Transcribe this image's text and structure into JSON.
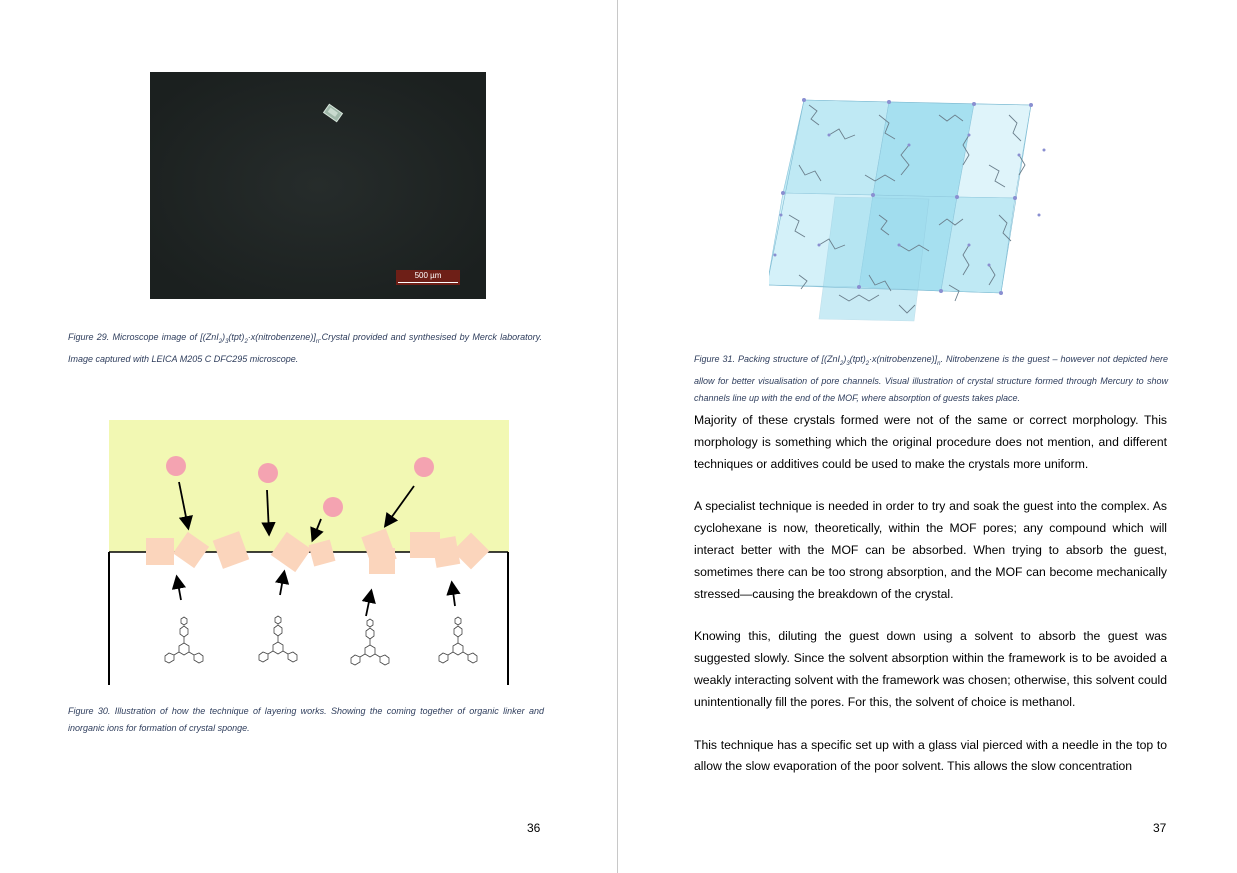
{
  "left_page": {
    "figure29": {
      "scale_label": "500 µm",
      "caption_parts": [
        "Figure 29. Microscope image of [(ZnI",
        "2",
        ")",
        "3",
        "(tpt)",
        "2",
        "·x(nitrobenzene)]",
        "n",
        ".Crystal provided and synthesised by Merck laboratory. Image captured with LEICA M205 C DFC295 microscope."
      ]
    },
    "figure30": {
      "caption": "Figure 30. Illustration of how the technique of layering works. Showing the coming together of organic linker and inorganic ions for formation of crystal sponge."
    },
    "page_number": "36"
  },
  "right_page": {
    "figure31": {
      "caption_parts": [
        "Figure 31. Packing structure of [(ZnI",
        "2",
        ")",
        "3",
        "(tpt)",
        "2",
        "·x(nitrobenzene)]",
        "n",
        ". Nitrobenzene is the guest – however not depicted here allow for better visualisation of pore channels. Visual illustration of crystal structure formed through Mercury to show channels line up with the end of the MOF, where absorption of guests takes place."
      ]
    },
    "paragraphs": [
      "Majority of these crystals formed were not of the same or correct morphology. This morphology is something which the original procedure does not mention, and different techniques or additives could be used to make the crystals more uniform.",
      "A specialist technique is needed in order to try and soak the guest into the complex. As cyclohexane is now, theoretically, within the MOF pores; any compound which will interact better with the MOF can be absorbed. When trying to absorb the guest, sometimes there can be too strong absorption, and the MOF can become mechanically stressed—causing the breakdown of the crystal.",
      "Knowing this, diluting the guest down using a solvent to absorb the guest was suggested slowly. Since the solvent absorption within the framework is to be avoided a weakly interacting solvent with the framework was chosen; otherwise, this solvent could unintentionally fill the pores. For this, the solvent of choice is methanol.",
      "This technique has a specific set up with a glass vial pierced with a needle in the top to allow the slow evaporation of the poor solvent. This allows the slow concentration"
    ],
    "page_number": "37"
  }
}
